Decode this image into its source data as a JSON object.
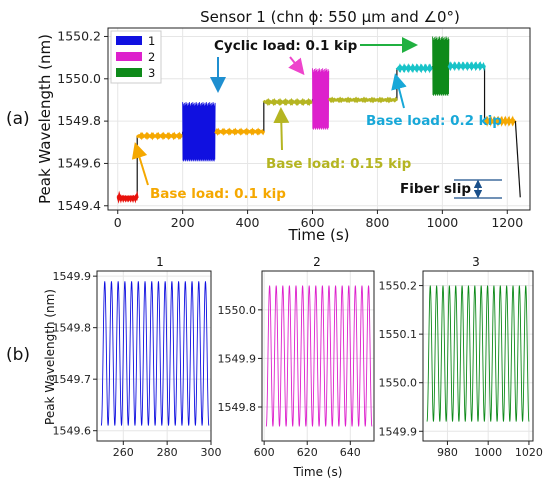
{
  "panel_labels": {
    "a": "(a)",
    "b": "(b)"
  },
  "chart_data": [
    {
      "type": "line",
      "title": "Sensor 1 (chn ϕ: 550 μm and ∠0°)",
      "xlabel": "Time (s)",
      "ylabel": "Peak Wavelength (nm)",
      "xlim": [
        -30,
        1270
      ],
      "ylim": [
        1549.38,
        1550.24
      ],
      "xticks": [
        0,
        200,
        400,
        600,
        800,
        1000,
        1200
      ],
      "xtick_labels": [
        "0",
        "200",
        "400",
        "600",
        "800",
        "1000",
        "1200"
      ],
      "yticks": [
        1549.4,
        1549.6,
        1549.8,
        1550.0,
        1550.2
      ],
      "ytick_labels": [
        "1549.4",
        "1549.6",
        "1549.8",
        "1550.0",
        "1550.2"
      ],
      "grid": true,
      "legend": {
        "placement": "top-left",
        "entries": [
          "1",
          "2",
          "3"
        ]
      },
      "segments": [
        {
          "kind": "flat",
          "t": [
            0,
            60
          ],
          "level": 1549.44,
          "color": "#e8120c"
        },
        {
          "kind": "flat",
          "t": [
            60,
            200
          ],
          "level": 1549.73,
          "color": "#f5a800"
        },
        {
          "kind": "cyclic",
          "t": [
            200,
            300
          ],
          "low": 1549.61,
          "high": 1549.89,
          "color": "#1010e0"
        },
        {
          "kind": "flat",
          "t": [
            300,
            450
          ],
          "level": 1549.75,
          "color": "#f5a800"
        },
        {
          "kind": "flat",
          "t": [
            450,
            600
          ],
          "level": 1549.89,
          "color": "#b5b522"
        },
        {
          "kind": "cyclic",
          "t": [
            600,
            650
          ],
          "low": 1549.76,
          "high": 1550.05,
          "color": "#dd20cc"
        },
        {
          "kind": "flat",
          "t": [
            650,
            860
          ],
          "level": 1549.9,
          "color": "#b5b522"
        },
        {
          "kind": "flat",
          "t": [
            860,
            970
          ],
          "level": 1550.05,
          "color": "#18c3c8"
        },
        {
          "kind": "cyclic",
          "t": [
            970,
            1020
          ],
          "low": 1549.92,
          "high": 1550.2,
          "color": "#0e8a1a"
        },
        {
          "kind": "flat",
          "t": [
            1020,
            1130
          ],
          "level": 1550.06,
          "color": "#18c3c8"
        },
        {
          "kind": "flat",
          "t": [
            1130,
            1225
          ],
          "level": 1549.8,
          "color": "#f5a800"
        },
        {
          "kind": "drop",
          "t": [
            1225,
            1240
          ],
          "from": 1549.8,
          "to": 1549.44,
          "color": "#111111"
        }
      ],
      "annotations": [
        {
          "text": "Base load:  0.1 kip",
          "color": "#f5a800"
        },
        {
          "text": "Cyclic load:  0.1 kip",
          "color": "#111111"
        },
        {
          "text": "Base load:  0.15 kip",
          "color": "#b5b522"
        },
        {
          "text": "Base load:  0.2 kip",
          "color": "#18a8d8"
        },
        {
          "text": "Fiber slip",
          "color": "#111111"
        }
      ]
    },
    {
      "type": "line",
      "title": "1",
      "ylabel": "Peak Wavelength (nm)",
      "xlim": [
        248,
        300
      ],
      "ylim": [
        1549.58,
        1549.91
      ],
      "xticks": [
        260,
        280,
        300
      ],
      "xtick_labels": [
        "260",
        "280",
        "300"
      ],
      "yticks": [
        1549.6,
        1549.7,
        1549.8,
        1549.9
      ],
      "ytick_labels": [
        "1549.6",
        "1549.7",
        "1549.8",
        "1549.9"
      ],
      "series": [
        {
          "start": 250,
          "end": 299,
          "cycles": 16,
          "low": 1549.61,
          "high": 1549.89,
          "color": "#1010e0"
        }
      ]
    },
    {
      "type": "line",
      "title": "2",
      "xlabel": "Time (s)",
      "xlim": [
        599,
        651
      ],
      "ylim": [
        1549.73,
        1550.08
      ],
      "xticks": [
        600,
        620,
        640
      ],
      "xtick_labels": [
        "600",
        "620",
        "640"
      ],
      "yticks": [
        1549.8,
        1549.9,
        1550.0
      ],
      "ytick_labels": [
        "1549.8",
        "1549.9",
        "1550.0"
      ],
      "series": [
        {
          "start": 601,
          "end": 650,
          "cycles": 16,
          "low": 1549.76,
          "high": 1550.05,
          "color": "#dd20cc"
        }
      ]
    },
    {
      "type": "line",
      "title": "3",
      "xlim": [
        968,
        1022
      ],
      "ylim": [
        1549.88,
        1550.23
      ],
      "xticks": [
        980,
        1000,
        1020
      ],
      "xtick_labels": [
        "980",
        "1000",
        "1020"
      ],
      "yticks": [
        1549.9,
        1550.0,
        1550.1,
        1550.2
      ],
      "ytick_labels": [
        "1549.9",
        "1550.0",
        "1550.1",
        "1550.2"
      ],
      "series": [
        {
          "start": 970,
          "end": 1020,
          "cycles": 16,
          "low": 1549.92,
          "high": 1550.2,
          "color": "#0e8a1a"
        }
      ]
    }
  ]
}
